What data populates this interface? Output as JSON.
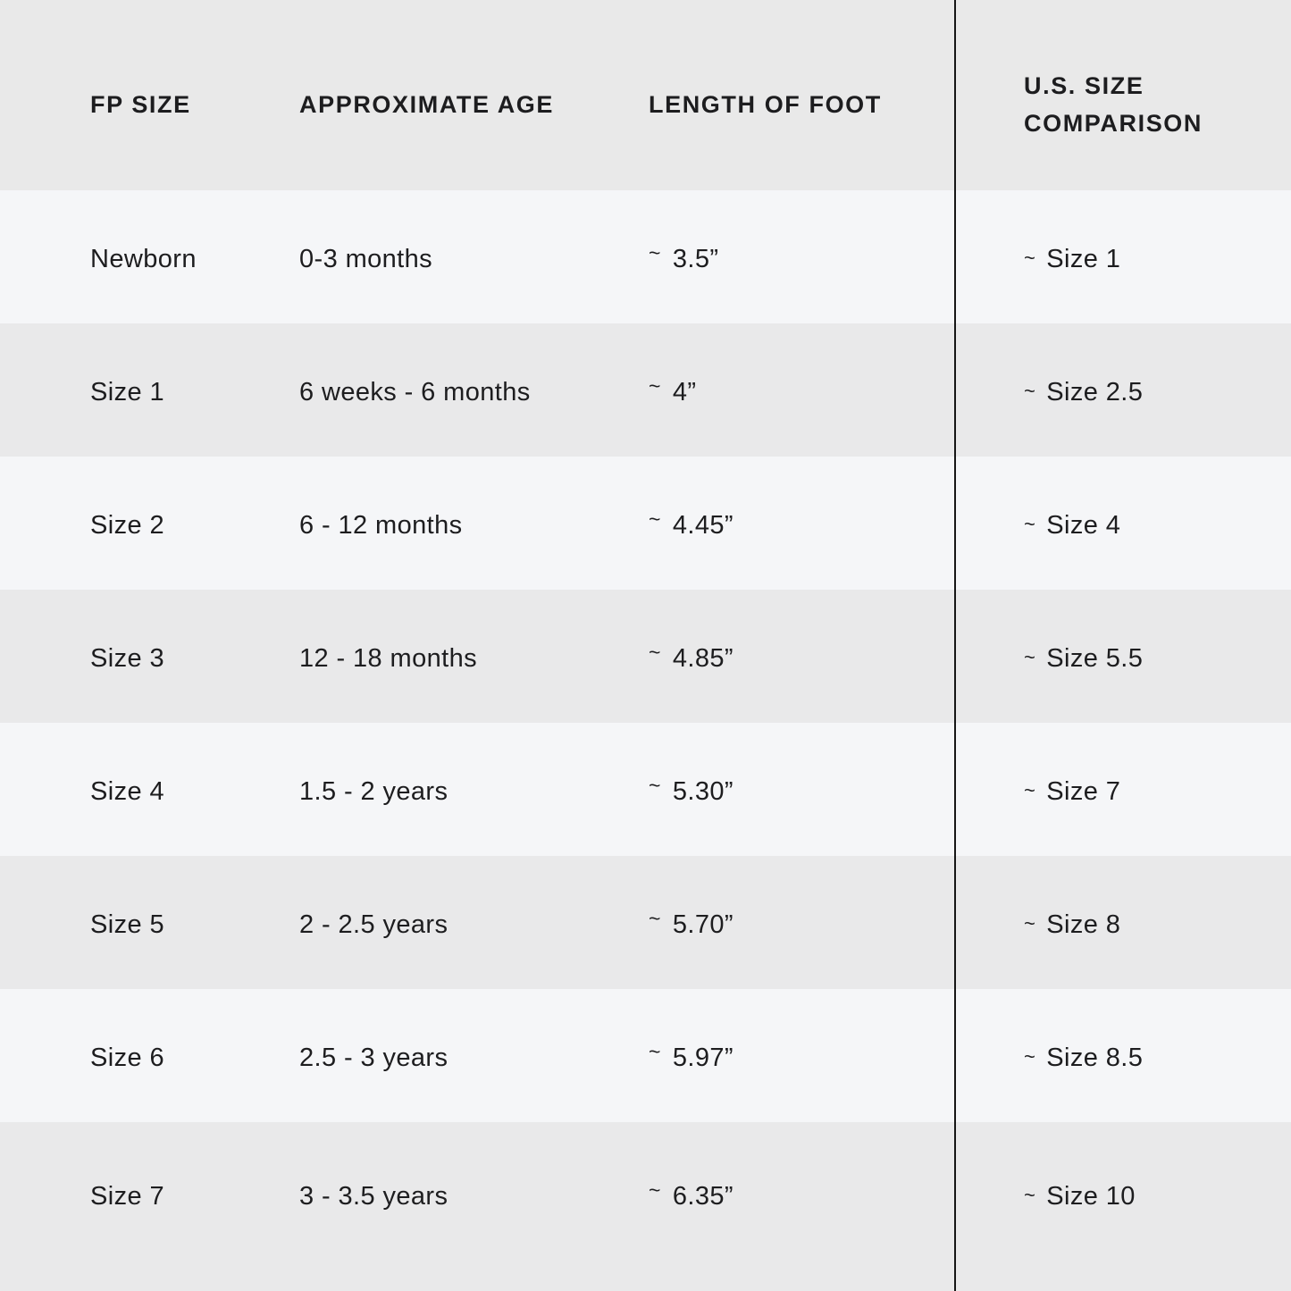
{
  "colors": {
    "header_bg": "#e9e9e9",
    "row_light_bg": "#f5f6f8",
    "row_dark_bg": "#e9e9ea",
    "text": "#1d1d1f",
    "divider": "#161616"
  },
  "chart_data": {
    "type": "table",
    "approx_symbol": "~",
    "columns": [
      "FP SIZE",
      "APPROXIMATE AGE",
      "LENGTH OF FOOT",
      "U.S. SIZE COMPARISON"
    ],
    "rows": [
      {
        "fp_size": "Newborn",
        "age": "0-3 months",
        "length": "3.5”",
        "us_size": "Size 1"
      },
      {
        "fp_size": "Size 1",
        "age": "6 weeks - 6 months",
        "length": "4”",
        "us_size": "Size 2.5"
      },
      {
        "fp_size": "Size 2",
        "age": "6 - 12 months",
        "length": "4.45”",
        "us_size": "Size 4"
      },
      {
        "fp_size": "Size 3",
        "age": "12 - 18 months",
        "length": "4.85”",
        "us_size": "Size 5.5"
      },
      {
        "fp_size": "Size 4",
        "age": "1.5 - 2 years",
        "length": "5.30”",
        "us_size": "Size 7"
      },
      {
        "fp_size": "Size 5",
        "age": "2 - 2.5 years",
        "length": "5.70”",
        "us_size": "Size 8"
      },
      {
        "fp_size": "Size 6",
        "age": "2.5 - 3 years",
        "length": "5.97”",
        "us_size": "Size 8.5"
      },
      {
        "fp_size": "Size 7",
        "age": "3 - 3.5 years",
        "length": "6.35”",
        "us_size": "Size 10"
      }
    ]
  }
}
